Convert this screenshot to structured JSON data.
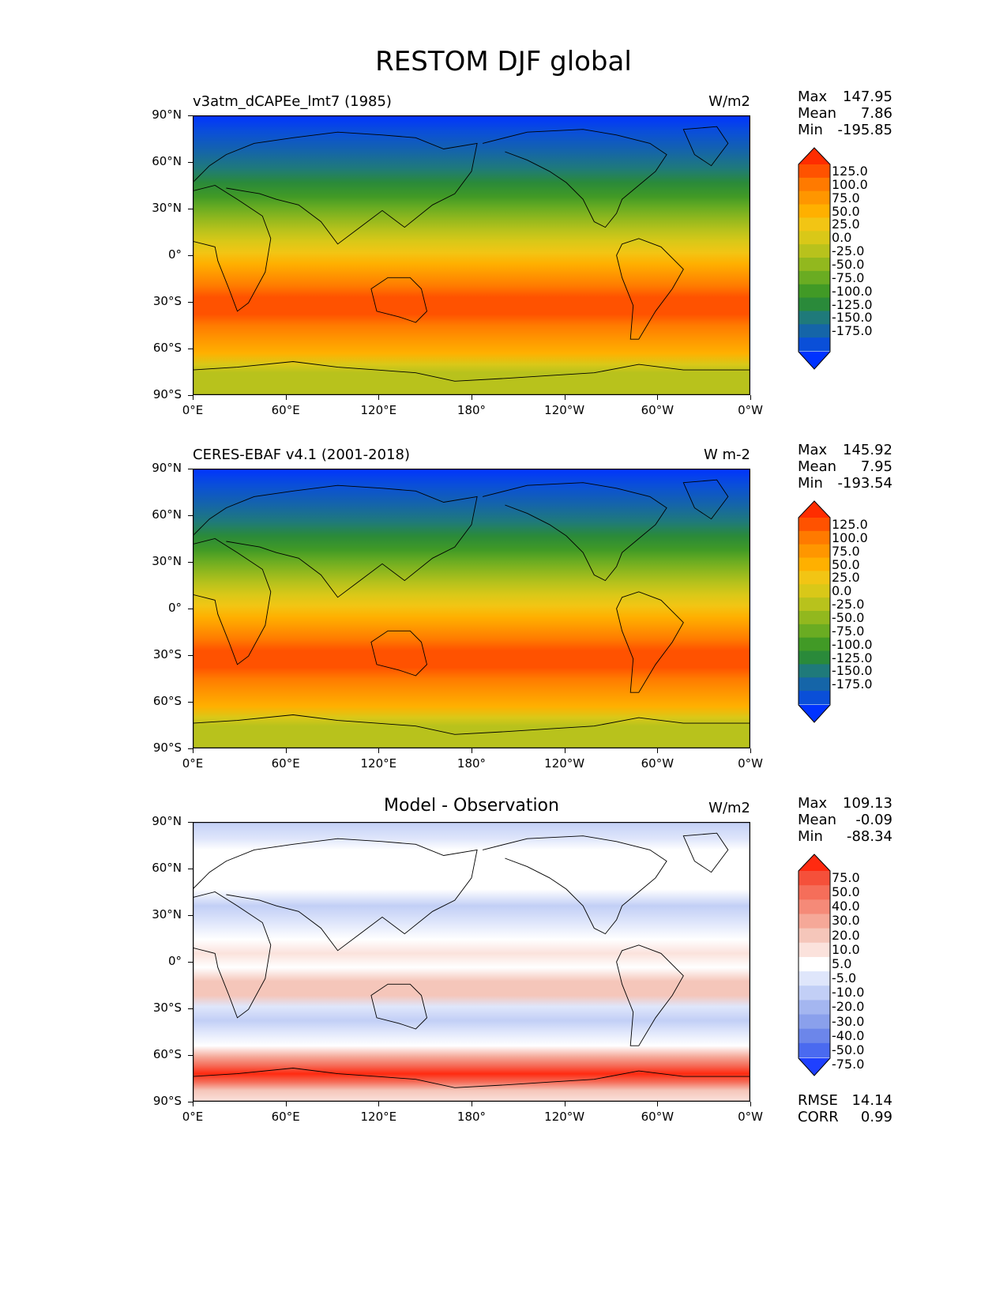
{
  "title": "RESTOM DJF global",
  "y_ticks": [
    "90°N",
    "60°N",
    "30°N",
    "0°",
    "30°S",
    "60°S",
    "90°S"
  ],
  "x_ticks": [
    "0°E",
    "60°E",
    "120°E",
    "180°",
    "120°W",
    "60°W",
    "0°W"
  ],
  "panels": [
    {
      "subtitle_left": "v3atm_dCAPEe_lmt7 (1985)",
      "subtitle_center": "",
      "units": "W/m2",
      "stats": [
        {
          "label": "Max",
          "value": "147.95"
        },
        {
          "label": "Mean",
          "value": "7.86"
        },
        {
          "label": "Min",
          "value": "-195.85"
        }
      ],
      "colorbar_labels": [
        "125.0",
        "100.0",
        "75.0",
        "50.0",
        "25.0",
        "0.0",
        "-25.0",
        "-50.0",
        "-75.0",
        "-100.0",
        "-125.0",
        "-150.0",
        "-175.0"
      ],
      "colorbar_colors": [
        "#ff2d00",
        "#ff5200",
        "#ff7a00",
        "#ff9600",
        "#ffb000",
        "#f2c514",
        "#d9c818",
        "#b8c21c",
        "#92b81e",
        "#6aac22",
        "#419a26",
        "#2a8a3a",
        "#1f7a7a",
        "#1565a8",
        "#0a4fd8",
        "#0033ff"
      ]
    },
    {
      "subtitle_left": "CERES-EBAF v4.1 (2001-2018)",
      "subtitle_center": "",
      "units": "W m-2",
      "stats": [
        {
          "label": "Max",
          "value": "145.92"
        },
        {
          "label": "Mean",
          "value": "7.95"
        },
        {
          "label": "Min",
          "value": "-193.54"
        }
      ],
      "colorbar_labels": [
        "125.0",
        "100.0",
        "75.0",
        "50.0",
        "25.0",
        "0.0",
        "-25.0",
        "-50.0",
        "-75.0",
        "-100.0",
        "-125.0",
        "-150.0",
        "-175.0"
      ],
      "colorbar_colors": [
        "#ff2d00",
        "#ff5200",
        "#ff7a00",
        "#ff9600",
        "#ffb000",
        "#f2c514",
        "#d9c818",
        "#b8c21c",
        "#92b81e",
        "#6aac22",
        "#419a26",
        "#2a8a3a",
        "#1f7a7a",
        "#1565a8",
        "#0a4fd8",
        "#0033ff"
      ]
    },
    {
      "subtitle_left": "",
      "subtitle_center": "Model - Observation",
      "units": "W/m2",
      "stats": [
        {
          "label": "Max",
          "value": "109.13"
        },
        {
          "label": "Mean",
          "value": "-0.09"
        },
        {
          "label": "Min",
          "value": "-88.34"
        }
      ],
      "colorbar_labels": [
        "75.0",
        "50.0",
        "40.0",
        "30.0",
        "20.0",
        "10.0",
        "5.0",
        "-5.0",
        "-10.0",
        "-20.0",
        "-30.0",
        "-40.0",
        "-50.0",
        "-75.0"
      ],
      "colorbar_colors": [
        "#ff2a10",
        "#f5503a",
        "#f56e5a",
        "#f58a78",
        "#f5a898",
        "#f5c6ba",
        "#fbe2dc",
        "#ffffff",
        "#dfe6fb",
        "#c2cff6",
        "#a4b6f0",
        "#8aa0ec",
        "#6c86ea",
        "#4a6af0",
        "#1f40ff"
      ],
      "extra_stats": [
        {
          "label": "RMSE",
          "value": "14.14"
        },
        {
          "label": "CORR",
          "value": "0.99"
        }
      ]
    }
  ]
}
